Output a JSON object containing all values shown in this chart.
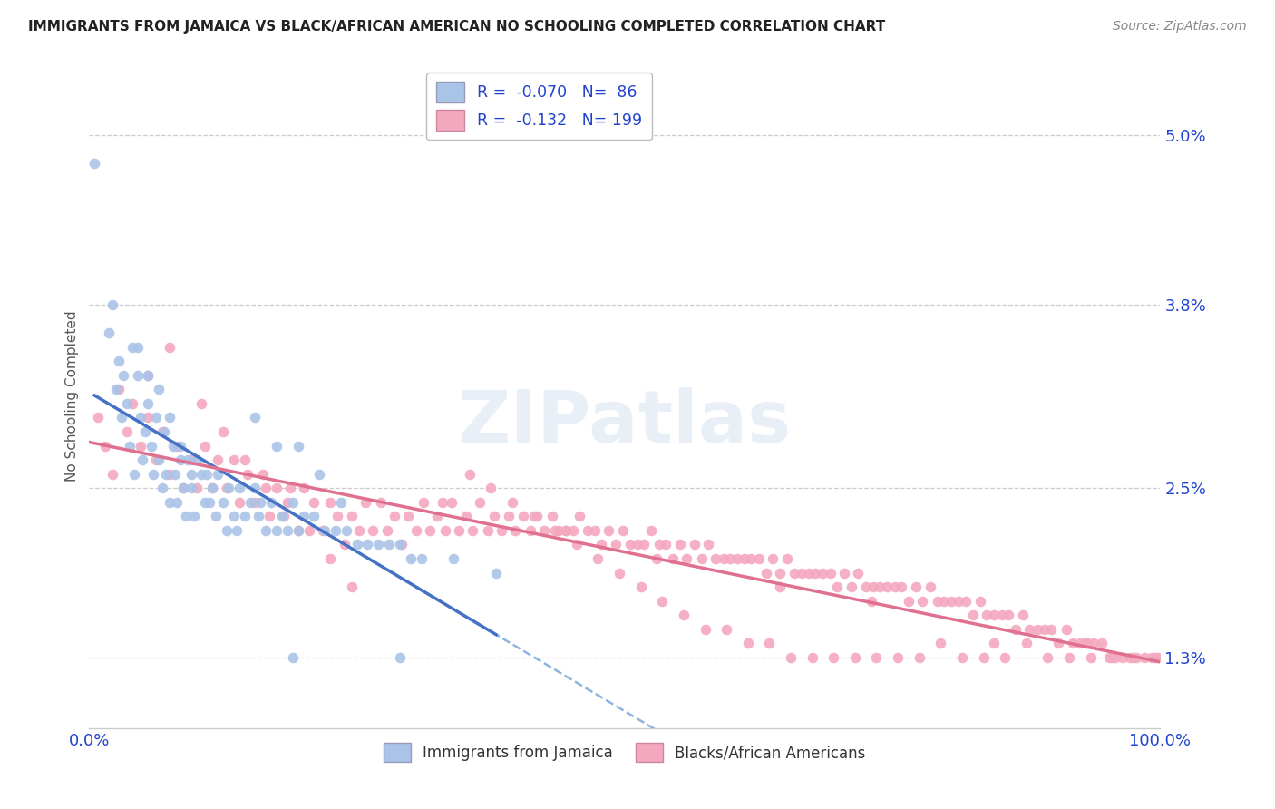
{
  "title": "IMMIGRANTS FROM JAMAICA VS BLACK/AFRICAN AMERICAN NO SCHOOLING COMPLETED CORRELATION CHART",
  "source": "Source: ZipAtlas.com",
  "ylabel": "No Schooling Completed",
  "xmin": 0.0,
  "xmax": 1.0,
  "ymin": 0.008,
  "ymax": 0.055,
  "ytick_vals": [
    0.013,
    0.025,
    0.038,
    0.05
  ],
  "ytick_labels": [
    "1.3%",
    "2.5%",
    "3.8%",
    "5.0%"
  ],
  "xtick_vals": [
    0.0,
    0.25,
    0.5,
    0.75,
    1.0
  ],
  "xtick_labels": [
    "0.0%",
    "",
    "",
    "",
    "100.0%"
  ],
  "legend_labels": [
    "Immigrants from Jamaica",
    "Blacks/African Americans"
  ],
  "legend_r": [
    -0.07,
    -0.132
  ],
  "legend_n": [
    86,
    199
  ],
  "blue_scatter_color": "#aac4e8",
  "pink_scatter_color": "#f4a8c0",
  "blue_line_color": "#4472c4",
  "pink_line_color": "#e07090",
  "blue_dash_color": "#7aa8d8",
  "grid_color": "#cccccc",
  "text_color": "#2244cc",
  "title_color": "#222222",
  "source_color": "#888888",
  "ylabel_color": "#555555",
  "background_color": "#ffffff",
  "watermark": "ZIPatlas",
  "blue_x": [
    0.005,
    0.018,
    0.022,
    0.025,
    0.028,
    0.03,
    0.032,
    0.035,
    0.038,
    0.04,
    0.042,
    0.045,
    0.048,
    0.05,
    0.052,
    0.055,
    0.058,
    0.06,
    0.062,
    0.065,
    0.068,
    0.07,
    0.072,
    0.075,
    0.078,
    0.08,
    0.082,
    0.085,
    0.088,
    0.09,
    0.092,
    0.095,
    0.098,
    0.1,
    0.105,
    0.108,
    0.11,
    0.112,
    0.115,
    0.118,
    0.12,
    0.125,
    0.128,
    0.13,
    0.135,
    0.138,
    0.14,
    0.145,
    0.15,
    0.155,
    0.158,
    0.16,
    0.165,
    0.17,
    0.175,
    0.18,
    0.185,
    0.19,
    0.195,
    0.2,
    0.21,
    0.22,
    0.23,
    0.24,
    0.25,
    0.26,
    0.27,
    0.28,
    0.29,
    0.3,
    0.31,
    0.155,
    0.175,
    0.195,
    0.215,
    0.235,
    0.065,
    0.075,
    0.085,
    0.095,
    0.045,
    0.055,
    0.34,
    0.38,
    0.29,
    0.19
  ],
  "blue_y": [
    0.048,
    0.036,
    0.038,
    0.032,
    0.034,
    0.03,
    0.033,
    0.031,
    0.028,
    0.035,
    0.026,
    0.033,
    0.03,
    0.027,
    0.029,
    0.031,
    0.028,
    0.026,
    0.03,
    0.027,
    0.025,
    0.029,
    0.026,
    0.024,
    0.028,
    0.026,
    0.024,
    0.027,
    0.025,
    0.023,
    0.027,
    0.025,
    0.023,
    0.027,
    0.026,
    0.024,
    0.026,
    0.024,
    0.025,
    0.023,
    0.026,
    0.024,
    0.022,
    0.025,
    0.023,
    0.022,
    0.025,
    0.023,
    0.024,
    0.025,
    0.023,
    0.024,
    0.022,
    0.024,
    0.022,
    0.023,
    0.022,
    0.024,
    0.022,
    0.023,
    0.023,
    0.022,
    0.022,
    0.022,
    0.021,
    0.021,
    0.021,
    0.021,
    0.021,
    0.02,
    0.02,
    0.03,
    0.028,
    0.028,
    0.026,
    0.024,
    0.032,
    0.03,
    0.028,
    0.026,
    0.035,
    0.033,
    0.02,
    0.019,
    0.013,
    0.013
  ],
  "pink_x": [
    0.008,
    0.015,
    0.022,
    0.028,
    0.035,
    0.04,
    0.048,
    0.055,
    0.062,
    0.068,
    0.075,
    0.082,
    0.088,
    0.095,
    0.1,
    0.108,
    0.115,
    0.12,
    0.128,
    0.135,
    0.14,
    0.148,
    0.155,
    0.162,
    0.168,
    0.175,
    0.182,
    0.188,
    0.195,
    0.2,
    0.21,
    0.218,
    0.225,
    0.232,
    0.238,
    0.245,
    0.252,
    0.258,
    0.265,
    0.272,
    0.278,
    0.285,
    0.292,
    0.298,
    0.305,
    0.312,
    0.318,
    0.325,
    0.332,
    0.338,
    0.345,
    0.352,
    0.358,
    0.365,
    0.372,
    0.378,
    0.385,
    0.392,
    0.398,
    0.405,
    0.412,
    0.418,
    0.425,
    0.432,
    0.438,
    0.445,
    0.452,
    0.458,
    0.465,
    0.472,
    0.478,
    0.485,
    0.492,
    0.498,
    0.505,
    0.512,
    0.518,
    0.525,
    0.532,
    0.538,
    0.545,
    0.552,
    0.558,
    0.565,
    0.572,
    0.578,
    0.585,
    0.592,
    0.598,
    0.605,
    0.612,
    0.618,
    0.625,
    0.632,
    0.638,
    0.645,
    0.652,
    0.658,
    0.665,
    0.672,
    0.678,
    0.685,
    0.692,
    0.698,
    0.705,
    0.712,
    0.718,
    0.725,
    0.732,
    0.738,
    0.745,
    0.752,
    0.758,
    0.765,
    0.772,
    0.778,
    0.785,
    0.792,
    0.798,
    0.805,
    0.812,
    0.818,
    0.825,
    0.832,
    0.838,
    0.845,
    0.852,
    0.858,
    0.865,
    0.872,
    0.878,
    0.885,
    0.892,
    0.898,
    0.905,
    0.912,
    0.918,
    0.925,
    0.932,
    0.938,
    0.945,
    0.952,
    0.958,
    0.965,
    0.972,
    0.978,
    0.985,
    0.992,
    0.998,
    0.055,
    0.075,
    0.105,
    0.125,
    0.145,
    0.165,
    0.185,
    0.205,
    0.225,
    0.245,
    0.355,
    0.375,
    0.395,
    0.415,
    0.435,
    0.455,
    0.475,
    0.495,
    0.515,
    0.535,
    0.555,
    0.575,
    0.595,
    0.615,
    0.635,
    0.655,
    0.675,
    0.695,
    0.715,
    0.735,
    0.755,
    0.775,
    0.795,
    0.815,
    0.835,
    0.855,
    0.875,
    0.895,
    0.915,
    0.935,
    0.955,
    0.975,
    0.995,
    0.33,
    0.53,
    0.73,
    0.93,
    0.445,
    0.645,
    0.845
  ],
  "pink_y": [
    0.03,
    0.028,
    0.026,
    0.032,
    0.029,
    0.031,
    0.028,
    0.03,
    0.027,
    0.029,
    0.026,
    0.028,
    0.025,
    0.027,
    0.025,
    0.028,
    0.025,
    0.027,
    0.025,
    0.027,
    0.024,
    0.026,
    0.024,
    0.026,
    0.023,
    0.025,
    0.023,
    0.025,
    0.022,
    0.025,
    0.024,
    0.022,
    0.024,
    0.023,
    0.021,
    0.023,
    0.022,
    0.024,
    0.022,
    0.024,
    0.022,
    0.023,
    0.021,
    0.023,
    0.022,
    0.024,
    0.022,
    0.023,
    0.022,
    0.024,
    0.022,
    0.023,
    0.022,
    0.024,
    0.022,
    0.023,
    0.022,
    0.023,
    0.022,
    0.023,
    0.022,
    0.023,
    0.022,
    0.023,
    0.022,
    0.022,
    0.022,
    0.023,
    0.022,
    0.022,
    0.021,
    0.022,
    0.021,
    0.022,
    0.021,
    0.021,
    0.021,
    0.022,
    0.021,
    0.021,
    0.02,
    0.021,
    0.02,
    0.021,
    0.02,
    0.021,
    0.02,
    0.02,
    0.02,
    0.02,
    0.02,
    0.02,
    0.02,
    0.019,
    0.02,
    0.019,
    0.02,
    0.019,
    0.019,
    0.019,
    0.019,
    0.019,
    0.019,
    0.018,
    0.019,
    0.018,
    0.019,
    0.018,
    0.018,
    0.018,
    0.018,
    0.018,
    0.018,
    0.017,
    0.018,
    0.017,
    0.018,
    0.017,
    0.017,
    0.017,
    0.017,
    0.017,
    0.016,
    0.017,
    0.016,
    0.016,
    0.016,
    0.016,
    0.015,
    0.016,
    0.015,
    0.015,
    0.015,
    0.015,
    0.014,
    0.015,
    0.014,
    0.014,
    0.014,
    0.014,
    0.014,
    0.013,
    0.013,
    0.013,
    0.013,
    0.013,
    0.013,
    0.013,
    0.013,
    0.033,
    0.035,
    0.031,
    0.029,
    0.027,
    0.025,
    0.024,
    0.022,
    0.02,
    0.018,
    0.026,
    0.025,
    0.024,
    0.023,
    0.022,
    0.021,
    0.02,
    0.019,
    0.018,
    0.017,
    0.016,
    0.015,
    0.015,
    0.014,
    0.014,
    0.013,
    0.013,
    0.013,
    0.013,
    0.013,
    0.013,
    0.013,
    0.014,
    0.013,
    0.013,
    0.013,
    0.014,
    0.013,
    0.013,
    0.013,
    0.013,
    0.013,
    0.013,
    0.024,
    0.02,
    0.017,
    0.014,
    0.022,
    0.018,
    0.014
  ]
}
